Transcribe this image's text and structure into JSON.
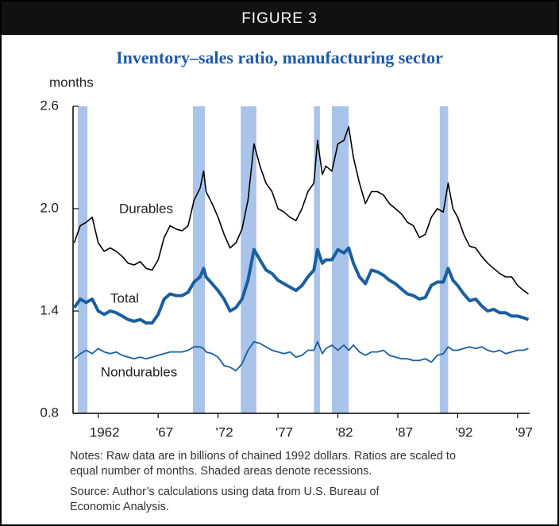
{
  "chart_data": {
    "type": "line",
    "figure_label": "FIGURE 3",
    "title": "Inventory–sales ratio, manufacturing sector",
    "y_label": "months",
    "notes": "Notes: Raw data are in billions of chained 1992 dollars. Ratios are scaled to equal number of months. Shaded areas denote recessions.",
    "source": "Source: Author’s calculations using data from U.S. Bureau of Economic Analysis.",
    "xlim": [
      1959.9,
      1998
    ],
    "ylim": [
      0.8,
      2.6
    ],
    "yticks": [
      0.8,
      1.4,
      {
        "value": 2,
        "label": "2.0"
      },
      2.6
    ],
    "xticks": [
      1962,
      {
        "value": 1967,
        "label": "'67"
      },
      {
        "value": 1972,
        "label": "'72"
      },
      {
        "value": 1977,
        "label": "'77"
      },
      {
        "value": 1982,
        "label": "'82"
      },
      {
        "value": 1987,
        "label": "'87"
      },
      {
        "value": 1992,
        "label": "'92"
      },
      {
        "value": 1997,
        "label": "'97"
      }
    ],
    "recession_color": "#a9c4e8",
    "recessions": [
      [
        1960.3,
        1961.1
      ],
      [
        1969.9,
        1970.9
      ],
      [
        1973.9,
        1975.2
      ],
      [
        1980.0,
        1980.5
      ],
      [
        1981.5,
        1982.9
      ],
      [
        1990.5,
        1991.2
      ]
    ],
    "x": [
      1960.0,
      1960.5,
      1961.0,
      1961.5,
      1962.0,
      1962.5,
      1963.0,
      1963.5,
      1964.0,
      1964.5,
      1965.0,
      1965.5,
      1966.0,
      1966.5,
      1967.0,
      1967.5,
      1968.0,
      1968.5,
      1969.0,
      1969.5,
      1970.0,
      1970.5,
      1970.8,
      1971.0,
      1971.5,
      1972.0,
      1972.5,
      1973.0,
      1973.5,
      1974.0,
      1974.5,
      1975.0,
      1975.5,
      1976.0,
      1976.5,
      1977.0,
      1977.5,
      1978.0,
      1978.5,
      1979.0,
      1979.5,
      1980.0,
      1980.3,
      1980.7,
      1981.0,
      1981.5,
      1982.0,
      1982.5,
      1982.9,
      1983.3,
      1983.8,
      1984.3,
      1984.8,
      1985.3,
      1985.8,
      1986.3,
      1986.8,
      1987.3,
      1987.8,
      1988.3,
      1988.8,
      1989.3,
      1989.8,
      1990.3,
      1990.8,
      1991.2,
      1991.6,
      1992.0,
      1992.5,
      1993.0,
      1993.5,
      1994.0,
      1994.5,
      1995.0,
      1995.5,
      1996.0,
      1996.5,
      1997.0,
      1997.5,
      1997.9
    ],
    "series": [
      {
        "name": "Durables",
        "color": "#000000",
        "width": 1.6,
        "values": [
          1.8,
          1.9,
          1.92,
          1.95,
          1.8,
          1.75,
          1.77,
          1.75,
          1.72,
          1.68,
          1.67,
          1.69,
          1.65,
          1.64,
          1.7,
          1.83,
          1.9,
          1.88,
          1.87,
          1.9,
          2.05,
          2.12,
          2.22,
          2.1,
          2.03,
          1.95,
          1.85,
          1.77,
          1.8,
          1.88,
          2.05,
          2.38,
          2.25,
          2.15,
          2.1,
          2.0,
          1.98,
          1.95,
          1.93,
          2.0,
          2.1,
          2.15,
          2.4,
          2.2,
          2.25,
          2.22,
          2.38,
          2.4,
          2.48,
          2.3,
          2.15,
          2.03,
          2.1,
          2.1,
          2.08,
          2.03,
          2.0,
          1.97,
          1.92,
          1.9,
          1.83,
          1.85,
          1.95,
          2.0,
          1.98,
          2.15,
          2.0,
          1.95,
          1.85,
          1.78,
          1.77,
          1.72,
          1.68,
          1.65,
          1.62,
          1.6,
          1.6,
          1.55,
          1.52,
          1.5
        ]
      },
      {
        "name": "Total",
        "color": "#1a5fa0",
        "width": 4,
        "values": [
          1.42,
          1.47,
          1.45,
          1.47,
          1.4,
          1.38,
          1.4,
          1.39,
          1.37,
          1.35,
          1.34,
          1.35,
          1.33,
          1.33,
          1.38,
          1.47,
          1.5,
          1.49,
          1.49,
          1.51,
          1.57,
          1.6,
          1.65,
          1.6,
          1.56,
          1.52,
          1.47,
          1.4,
          1.42,
          1.47,
          1.58,
          1.76,
          1.7,
          1.64,
          1.62,
          1.58,
          1.56,
          1.54,
          1.52,
          1.55,
          1.6,
          1.64,
          1.76,
          1.68,
          1.7,
          1.7,
          1.76,
          1.74,
          1.77,
          1.68,
          1.6,
          1.56,
          1.64,
          1.63,
          1.61,
          1.58,
          1.56,
          1.53,
          1.5,
          1.49,
          1.47,
          1.48,
          1.55,
          1.57,
          1.57,
          1.65,
          1.58,
          1.55,
          1.5,
          1.46,
          1.47,
          1.43,
          1.4,
          1.41,
          1.39,
          1.39,
          1.37,
          1.37,
          1.36,
          1.35
        ]
      },
      {
        "name": "Nondurables",
        "color": "#1a5fa0",
        "width": 1.8,
        "values": [
          1.12,
          1.15,
          1.17,
          1.15,
          1.18,
          1.16,
          1.15,
          1.16,
          1.14,
          1.13,
          1.12,
          1.13,
          1.12,
          1.13,
          1.14,
          1.15,
          1.16,
          1.16,
          1.16,
          1.17,
          1.19,
          1.19,
          1.18,
          1.16,
          1.15,
          1.13,
          1.08,
          1.07,
          1.05,
          1.09,
          1.17,
          1.22,
          1.21,
          1.19,
          1.17,
          1.16,
          1.15,
          1.16,
          1.13,
          1.14,
          1.17,
          1.17,
          1.22,
          1.15,
          1.18,
          1.2,
          1.17,
          1.2,
          1.17,
          1.2,
          1.16,
          1.14,
          1.16,
          1.16,
          1.17,
          1.14,
          1.13,
          1.12,
          1.12,
          1.11,
          1.11,
          1.12,
          1.1,
          1.14,
          1.15,
          1.19,
          1.17,
          1.17,
          1.18,
          1.19,
          1.18,
          1.19,
          1.17,
          1.16,
          1.17,
          1.15,
          1.16,
          1.17,
          1.17,
          1.18
        ]
      }
    ]
  }
}
